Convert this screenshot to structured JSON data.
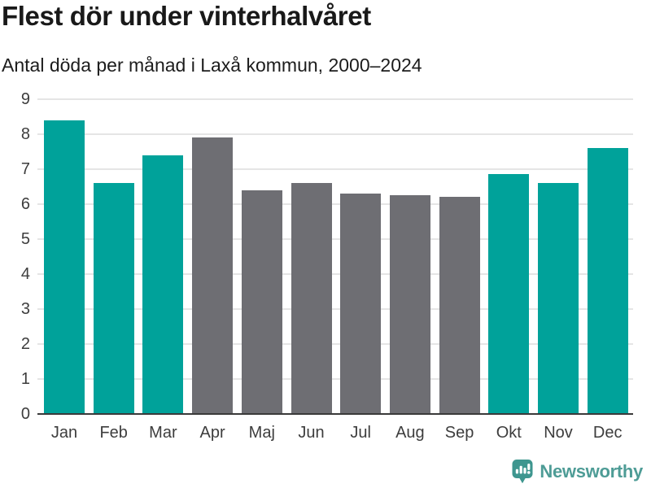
{
  "chart_data": {
    "type": "bar",
    "title": "Flest dör under vinterhalvåret",
    "subtitle": "Antal döda per månad i Laxå kommun, 2000–2024",
    "categories": [
      "Jan",
      "Feb",
      "Mar",
      "Apr",
      "Maj",
      "Jun",
      "Jul",
      "Aug",
      "Sep",
      "Okt",
      "Nov",
      "Dec"
    ],
    "values": [
      8.4,
      6.6,
      7.4,
      7.9,
      6.4,
      6.6,
      6.3,
      6.25,
      6.2,
      6.85,
      6.6,
      7.6
    ],
    "bar_color_roles": [
      "highlight",
      "highlight",
      "highlight",
      "base",
      "base",
      "base",
      "base",
      "base",
      "base",
      "highlight",
      "highlight",
      "highlight"
    ],
    "colors": {
      "highlight": "#00A29A",
      "base": "#6E6E73"
    },
    "xlabel": "",
    "ylabel": "",
    "ylim": [
      0,
      9
    ],
    "yticks": [
      0,
      1,
      2,
      3,
      4,
      5,
      6,
      7,
      8,
      9
    ],
    "grid": true,
    "legend_position": "none",
    "axis": {
      "line_color": "#3a3a3a",
      "grid_color": "#e5e5e5",
      "tick_color": "#3d3d3d"
    }
  },
  "branding": {
    "name": "Newsworthy",
    "text_color": "#4E9C96",
    "icon_color": "#3E968F",
    "icon_glyph_color": "#ffffff"
  }
}
